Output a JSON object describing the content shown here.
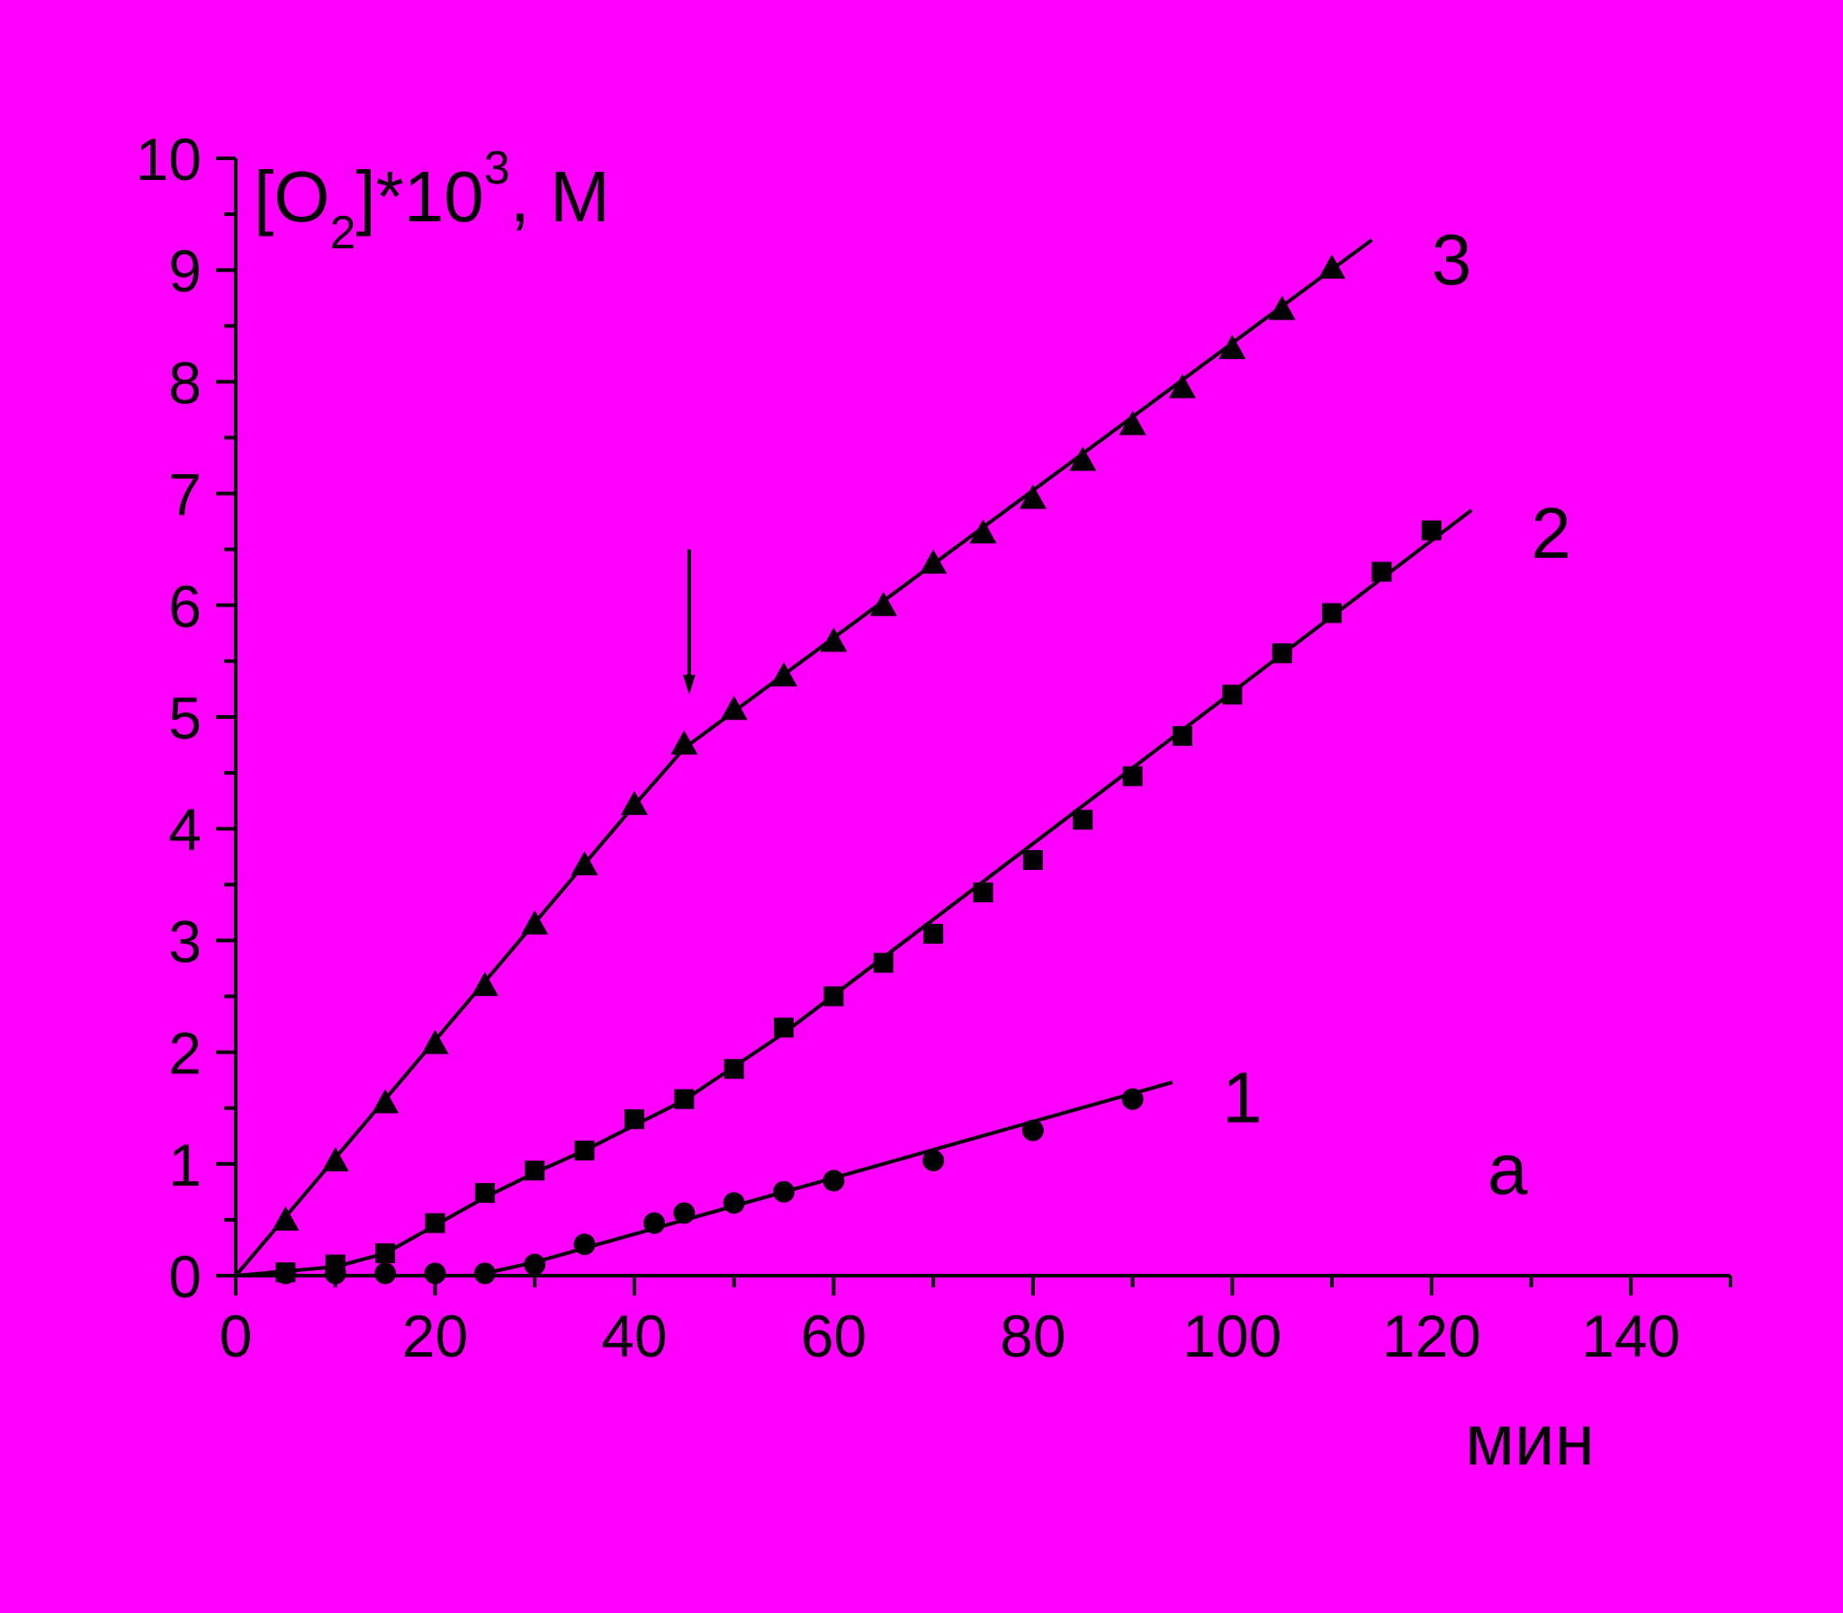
{
  "background_color": "#FF00FF",
  "ink_color": "#000000",
  "chart_data": {
    "type": "scatter",
    "title": "",
    "ylabel": {
      "pre": "[O",
      "sub": "2",
      "mid": "]*10",
      "sup": "3",
      "post": ", M"
    },
    "xlabel": "мин",
    "panel_label": "а",
    "xlim": [
      0,
      150
    ],
    "ylim": [
      0,
      10
    ],
    "x_ticks": [
      0,
      20,
      40,
      60,
      80,
      100,
      120,
      140
    ],
    "x_tick_labels": [
      "0",
      "20",
      "40",
      "60",
      "80",
      "100",
      "120",
      "140"
    ],
    "y_ticks": [
      0,
      1,
      2,
      3,
      4,
      5,
      6,
      7,
      8,
      9,
      10
    ],
    "y_tick_labels": [
      "0",
      "1",
      "2",
      "3",
      "4",
      "5",
      "6",
      "7",
      "8",
      "9",
      "10"
    ],
    "x_minor_step": 10,
    "y_minor_step": 0.5,
    "grid": false,
    "annotation_arrow": {
      "x": 45.5,
      "y_from": 6.5,
      "y_to": 5.2
    },
    "series": [
      {
        "label": "1",
        "marker": "circle",
        "points": [
          [
            5,
            0.02
          ],
          [
            10,
            0.02
          ],
          [
            15,
            0.02
          ],
          [
            20,
            0.02
          ],
          [
            25,
            0.02
          ],
          [
            30,
            0.1
          ],
          [
            35,
            0.28
          ],
          [
            42,
            0.47
          ],
          [
            45,
            0.56
          ],
          [
            50,
            0.65
          ],
          [
            55,
            0.75
          ],
          [
            60,
            0.85
          ],
          [
            70,
            1.03
          ],
          [
            80,
            1.3
          ],
          [
            90,
            1.58
          ]
        ],
        "fit": [
          [
            25,
            0.02
          ],
          [
            30,
            0.12
          ],
          [
            94,
            1.73
          ]
        ],
        "label_at": [
          101,
          1.6
        ]
      },
      {
        "label": "2",
        "marker": "square",
        "points": [
          [
            5,
            0.03
          ],
          [
            10,
            0.1
          ],
          [
            15,
            0.2
          ],
          [
            20,
            0.47
          ],
          [
            25,
            0.74
          ],
          [
            30,
            0.94
          ],
          [
            35,
            1.12
          ],
          [
            40,
            1.4
          ],
          [
            45,
            1.58
          ],
          [
            50,
            1.85
          ],
          [
            55,
            2.22
          ],
          [
            60,
            2.5
          ],
          [
            65,
            2.8
          ],
          [
            70,
            3.06
          ],
          [
            75,
            3.43
          ],
          [
            80,
            3.72
          ],
          [
            85,
            4.08
          ],
          [
            90,
            4.47
          ],
          [
            95,
            4.83
          ],
          [
            100,
            5.2
          ],
          [
            105,
            5.57
          ],
          [
            110,
            5.93
          ],
          [
            115,
            6.3
          ],
          [
            120,
            6.67
          ]
        ],
        "fit": [
          [
            0,
            0
          ],
          [
            10,
            0.08
          ],
          [
            15,
            0.2
          ],
          [
            20,
            0.45
          ],
          [
            25,
            0.7
          ],
          [
            30,
            0.92
          ],
          [
            35,
            1.12
          ],
          [
            45,
            1.57
          ],
          [
            55,
            2.17
          ],
          [
            124,
            6.85
          ]
        ],
        "label_at": [
          132,
          6.65
        ]
      },
      {
        "label": "3",
        "marker": "triangle",
        "points": [
          [
            5,
            0.5
          ],
          [
            10,
            1.03
          ],
          [
            15,
            1.55
          ],
          [
            20,
            2.08
          ],
          [
            25,
            2.6
          ],
          [
            30,
            3.15
          ],
          [
            35,
            3.68
          ],
          [
            40,
            4.22
          ],
          [
            45,
            4.76
          ],
          [
            50,
            5.07
          ],
          [
            55,
            5.37
          ],
          [
            60,
            5.68
          ],
          [
            65,
            6.0
          ],
          [
            70,
            6.38
          ],
          [
            75,
            6.65
          ],
          [
            80,
            6.96
          ],
          [
            85,
            7.3
          ],
          [
            90,
            7.62
          ],
          [
            95,
            7.95
          ],
          [
            100,
            8.3
          ],
          [
            105,
            8.65
          ],
          [
            110,
            9.02
          ]
        ],
        "fit": [
          [
            0,
            0
          ],
          [
            40,
            4.21
          ],
          [
            45,
            4.72
          ],
          [
            114,
            9.27
          ]
        ],
        "label_at": [
          122,
          9.1
        ]
      }
    ]
  }
}
